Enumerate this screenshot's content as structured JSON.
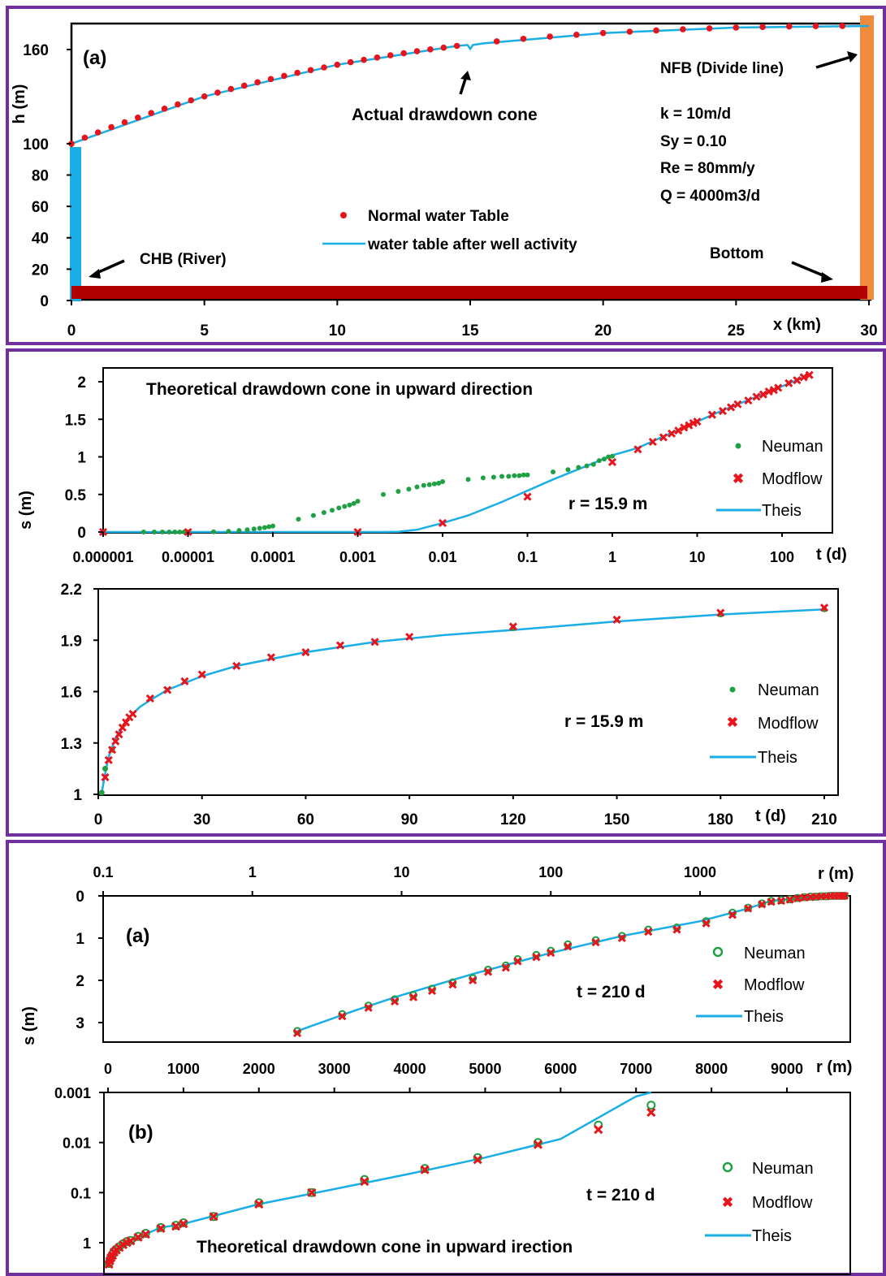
{
  "colors": {
    "red": "#e8141c",
    "green": "#1fa043",
    "blue": "#1aaee6",
    "orange": "#f08a3c",
    "darkred": "#b00000",
    "frame": "#7030a0"
  },
  "panels": {
    "top": {
      "label": "(a)",
      "ylabel": "h (m)",
      "xlabel": "x (km)",
      "yticks": [
        "0",
        "20",
        "40",
        "60",
        "80",
        "100",
        "160"
      ],
      "xticks": [
        "0",
        "5",
        "10",
        "15",
        "20",
        "25",
        "30"
      ],
      "annotations": {
        "nfb": "NFB (Divide line)",
        "cone": "Actual drawdown cone",
        "chb": "CHB (River)",
        "bottom": "Bottom",
        "k": "k = 10m/d",
        "sy": "Sy = 0.10",
        "re": "Re = 80mm/y",
        "q": "Q = 4000m3/d"
      },
      "legend": [
        "Normal water Table",
        "water table after well activity"
      ]
    },
    "mid1": {
      "title": "Theoretical drawdown cone in upward direction",
      "ylabel": "s (m)",
      "xlabel": "t (d)",
      "yticks": [
        "0",
        "0.5",
        "1",
        "1.5",
        "2"
      ],
      "xticks": [
        "0.000001",
        "0.00001",
        "0.0001",
        "0.001",
        "0.01",
        "0.1",
        "1",
        "10",
        "100"
      ],
      "rlabel": "r = 15.9 m",
      "legend": [
        "Neuman",
        "Modflow",
        "Theis"
      ]
    },
    "mid2": {
      "ylabel": "",
      "xlabel": "t (d)",
      "yticks": [
        "1",
        "1.3",
        "1.6",
        "1.9",
        "2.2"
      ],
      "xticks": [
        "0",
        "30",
        "60",
        "90",
        "120",
        "150",
        "180",
        "210"
      ],
      "rlabel": "r = 15.9 m",
      "legend": [
        "Neuman",
        "Modflow",
        "Theis"
      ]
    },
    "bot1": {
      "label": "(a)",
      "ylabel": "s (m)",
      "xlabel": "r (m)",
      "yticks": [
        "0",
        "1",
        "2",
        "3"
      ],
      "xticks": [
        "0.1",
        "1",
        "10",
        "100",
        "1000"
      ],
      "tlabel": "t = 210 d",
      "legend": [
        "Neuman",
        "Modflow",
        "Theis"
      ]
    },
    "bot2": {
      "label": "(b)",
      "xlabel": "r (m)",
      "yticks": [
        "0.001",
        "0.01",
        "0.1",
        "1"
      ],
      "xticks": [
        "0",
        "1000",
        "2000",
        "3000",
        "4000",
        "5000",
        "6000",
        "7000",
        "8000",
        "9000"
      ],
      "tlabel": "t = 210 d",
      "title": "Theoretical drawdown cone in upward irection",
      "legend": [
        "Neuman",
        "Modflow",
        "Theis"
      ]
    }
  },
  "chart_data": [
    {
      "type": "line",
      "title": "",
      "xlabel": "x (km)",
      "ylabel": "h (m)",
      "xlim": [
        0,
        30
      ],
      "ylim": [
        0,
        180
      ],
      "series": [
        {
          "name": "Normal water Table",
          "x": [
            0,
            0.5,
            1,
            1.5,
            2,
            2.5,
            3,
            3.5,
            4,
            4.5,
            5,
            5.5,
            6,
            6.5,
            7,
            7.5,
            8,
            8.5,
            9,
            9.5,
            10,
            10.5,
            11,
            11.5,
            12,
            12.5,
            13,
            13.5,
            14,
            14.5,
            16,
            17,
            18,
            19,
            20,
            21,
            22,
            23,
            24,
            25,
            26,
            27,
            28,
            29
          ],
          "y": [
            100,
            103.8,
            107.2,
            110.5,
            113.6,
            116.6,
            119.5,
            122.3,
            125,
            127.6,
            130.1,
            132.5,
            134.8,
            137,
            139.1,
            141.2,
            143.2,
            145.1,
            146.9,
            148.6,
            150.3,
            151.9,
            153.4,
            154.9,
            156.3,
            157.6,
            158.9,
            160.1,
            161.2,
            162.3,
            165.2,
            166.8,
            168.2,
            169.4,
            170.5,
            171.4,
            172.2,
            172.9,
            173.5,
            174,
            174.4,
            174.7,
            174.9,
            175
          ]
        },
        {
          "name": "water table after well activity",
          "x": [
            0,
            5,
            10,
            14.5,
            14.9,
            15,
            15.1,
            15.5,
            20,
            25,
            30
          ],
          "y": [
            100,
            130.1,
            150.3,
            162.3,
            162.9,
            160.4,
            162.9,
            163.9,
            170.5,
            174,
            175
          ]
        }
      ]
    },
    {
      "type": "scatter",
      "xlabel": "t (d)",
      "ylabel": "s (m)",
      "xscale": "log",
      "xlim": [
        1e-06,
        210
      ],
      "ylim": [
        0,
        2.2
      ],
      "series": [
        {
          "name": "Neuman",
          "x": [
            1e-06,
            3e-06,
            4e-06,
            5e-06,
            6e-06,
            7e-06,
            8e-06,
            9e-06,
            1e-05,
            2e-05,
            3e-05,
            4e-05,
            5e-05,
            6e-05,
            7e-05,
            8e-05,
            9e-05,
            0.0001,
            0.0002,
            0.0003,
            0.0004,
            0.0005,
            0.0006,
            0.0007,
            0.0008,
            0.0009,
            0.001,
            0.002,
            0.003,
            0.004,
            0.005,
            0.006,
            0.007,
            0.008,
            0.009,
            0.01,
            0.02,
            0.03,
            0.04,
            0.05,
            0.06,
            0.07,
            0.08,
            0.09,
            0.1,
            0.2,
            0.3,
            0.4,
            0.5,
            0.6,
            0.7,
            0.8,
            0.9,
            1
          ],
          "y": [
            0,
            0,
            0,
            0,
            0,
            0,
            0,
            0,
            0.001,
            0.002,
            0.01,
            0.02,
            0.03,
            0.04,
            0.05,
            0.06,
            0.07,
            0.08,
            0.17,
            0.22,
            0.26,
            0.29,
            0.32,
            0.34,
            0.36,
            0.38,
            0.41,
            0.5,
            0.54,
            0.57,
            0.6,
            0.62,
            0.63,
            0.64,
            0.65,
            0.67,
            0.7,
            0.72,
            0.73,
            0.74,
            0.74,
            0.75,
            0.75,
            0.76,
            0.76,
            0.8,
            0.83,
            0.86,
            0.88,
            0.9,
            0.95,
            0.97,
            1,
            1.01
          ]
        },
        {
          "name": "Modflow",
          "x": [
            1e-06,
            1e-05,
            0.001,
            0.01,
            0.1,
            1,
            2,
            3,
            4,
            5,
            6,
            7,
            8,
            9,
            10,
            15,
            20,
            25,
            30,
            40,
            50,
            60,
            70,
            80,
            90,
            120,
            150,
            180,
            210
          ],
          "y": [
            0,
            0,
            0,
            0.12,
            0.47,
            0.93,
            1.1,
            1.2,
            1.26,
            1.31,
            1.35,
            1.39,
            1.42,
            1.45,
            1.47,
            1.56,
            1.61,
            1.66,
            1.7,
            1.75,
            1.8,
            1.83,
            1.87,
            1.89,
            1.92,
            1.98,
            2.02,
            2.06,
            2.09
          ]
        },
        {
          "name": "Theis",
          "x": [
            1e-06,
            0.002,
            0.003,
            0.005,
            0.01,
            0.02,
            0.05,
            0.1,
            0.2,
            0.5,
            1,
            2,
            5,
            10,
            20,
            50,
            100,
            210
          ],
          "y": [
            0,
            0,
            0.003,
            0.03,
            0.12,
            0.22,
            0.4,
            0.55,
            0.7,
            0.88,
            1.02,
            1.12,
            1.32,
            1.47,
            1.62,
            1.8,
            1.94,
            2.09
          ]
        }
      ]
    },
    {
      "type": "scatter",
      "xlabel": "t (d)",
      "ylabel": "",
      "xlim": [
        0,
        210
      ],
      "ylim": [
        1,
        2.2
      ],
      "series": [
        {
          "name": "Neuman",
          "x": [
            1,
            2,
            4,
            120,
            180,
            210
          ],
          "y": [
            1.01,
            1.15,
            1.26,
            1.97,
            2.05,
            2.08
          ]
        },
        {
          "name": "Modflow",
          "x": [
            2,
            3,
            4,
            5,
            6,
            7,
            8,
            9,
            10,
            15,
            20,
            25,
            30,
            40,
            50,
            60,
            70,
            80,
            90,
            120,
            150,
            180,
            210
          ],
          "y": [
            1.1,
            1.2,
            1.26,
            1.31,
            1.35,
            1.39,
            1.42,
            1.45,
            1.47,
            1.56,
            1.61,
            1.66,
            1.7,
            1.75,
            1.8,
            1.83,
            1.87,
            1.89,
            1.92,
            1.98,
            2.02,
            2.06,
            2.09
          ]
        },
        {
          "name": "Theis",
          "x": [
            1,
            2,
            3,
            5,
            8,
            12,
            15,
            20,
            30,
            40,
            50,
            60,
            80,
            100,
            120,
            150,
            180,
            210
          ],
          "y": [
            1.01,
            1.12,
            1.22,
            1.33,
            1.43,
            1.51,
            1.55,
            1.61,
            1.69,
            1.75,
            1.79,
            1.83,
            1.89,
            1.93,
            1.96,
            2.01,
            2.05,
            2.08
          ]
        }
      ]
    },
    {
      "type": "scatter",
      "xlabel": "r (m)",
      "ylabel": "s (m)",
      "xscale": "log",
      "xlim": [
        0.1,
        10000
      ],
      "ylim": [
        0,
        3.5
      ],
      "yreversed": true,
      "series": [
        {
          "name": "Neuman",
          "x": [
            2,
            4,
            6,
            9,
            12,
            16,
            22,
            30,
            38,
            50,
            60,
            80,
            100,
            130,
            200,
            300,
            450,
            700,
            1100,
            1650,
            2100,
            2600,
            3000,
            3500,
            4000,
            4500,
            5000,
            5500,
            6000,
            6500,
            7000,
            7500,
            8000,
            8500,
            9000,
            9300
          ],
          "y": [
            3.2,
            2.8,
            2.6,
            2.45,
            2.35,
            2.2,
            2.05,
            1.95,
            1.75,
            1.65,
            1.5,
            1.4,
            1.3,
            1.15,
            1.05,
            0.95,
            0.8,
            0.75,
            0.6,
            0.4,
            0.28,
            0.18,
            0.12,
            0.1,
            0.08,
            0.05,
            0.03,
            0.02,
            0.02,
            0.01,
            0.01,
            0,
            0,
            0,
            0,
            0
          ]
        },
        {
          "name": "Modflow",
          "x": [
            2,
            4,
            6,
            9,
            12,
            16,
            22,
            30,
            38,
            50,
            60,
            80,
            100,
            130,
            200,
            300,
            450,
            700,
            1100,
            1650,
            2100,
            2600,
            3000,
            3500,
            4000,
            4500,
            5000,
            5500,
            6000,
            6500,
            7000,
            7500,
            8000,
            8500,
            9000,
            9300
          ],
          "y": [
            3.25,
            2.85,
            2.65,
            2.5,
            2.4,
            2.25,
            2.1,
            2,
            1.8,
            1.7,
            1.55,
            1.45,
            1.35,
            1.2,
            1.1,
            1,
            0.85,
            0.8,
            0.65,
            0.45,
            0.3,
            0.2,
            0.14,
            0.12,
            0.09,
            0.06,
            0.04,
            0.03,
            0.02,
            0.01,
            0.01,
            0,
            0,
            0,
            0,
            0
          ]
        },
        {
          "name": "Theis",
          "x": [
            2,
            5,
            10,
            30,
            100,
            300,
            1000,
            2000,
            3000,
            5000,
            9500
          ],
          "y": [
            3.2,
            2.7,
            2.35,
            1.85,
            1.35,
            0.95,
            0.6,
            0.32,
            0.12,
            0.04,
            0
          ]
        }
      ]
    },
    {
      "type": "scatter",
      "xlabel": "r (m)",
      "ylabel": "",
      "yscale": "log",
      "yreversed": true,
      "xlim": [
        0,
        10000
      ],
      "ylim": [
        0.001,
        3
      ],
      "series": [
        {
          "name": "Neuman",
          "x": [
            12,
            25,
            40,
            60,
            80,
            110,
            150,
            200,
            250,
            300,
            400,
            500,
            700,
            900,
            1000,
            1400,
            2000,
            2700,
            3400,
            4200,
            4900,
            5700,
            6500,
            7200
          ],
          "y": [
            2.6,
            2.2,
            1.9,
            1.7,
            1.5,
            1.35,
            1.2,
            1.05,
            0.95,
            0.9,
            0.75,
            0.65,
            0.5,
            0.45,
            0.4,
            0.3,
            0.16,
            0.1,
            0.055,
            0.033,
            0.02,
            0.01,
            0.0045,
            0.0018
          ]
        },
        {
          "name": "Modflow",
          "x": [
            12,
            25,
            40,
            60,
            80,
            110,
            150,
            200,
            250,
            300,
            400,
            500,
            700,
            900,
            1000,
            1400,
            2000,
            2700,
            3400,
            4200,
            4900,
            5700,
            6500,
            7200
          ],
          "y": [
            2.7,
            2.3,
            2,
            1.8,
            1.55,
            1.4,
            1.25,
            1.1,
            1,
            0.92,
            0.78,
            0.68,
            0.52,
            0.47,
            0.42,
            0.3,
            0.17,
            0.1,
            0.06,
            0.035,
            0.022,
            0.011,
            0.0055,
            0.0025
          ]
        },
        {
          "name": "Theis",
          "x": [
            0,
            100,
            300,
            700,
            1000,
            2000,
            3000,
            4000,
            5000,
            6000,
            7000,
            7200
          ],
          "y": [
            3,
            1.5,
            0.9,
            0.5,
            0.42,
            0.17,
            0.085,
            0.042,
            0.02,
            0.0085,
            0.0012,
            0.001
          ]
        }
      ]
    }
  ]
}
